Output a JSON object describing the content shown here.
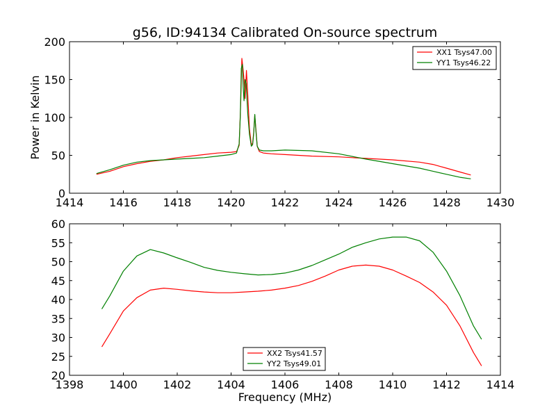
{
  "chart_data": [
    {
      "type": "line",
      "title": "g56, ID:94134 Calibrated On-source spectrum",
      "xlabel": "",
      "ylabel": "Power in Kelvin",
      "xlim": [
        1414,
        1430
      ],
      "ylim": [
        0,
        200
      ],
      "xticks": [
        1414,
        1416,
        1418,
        1420,
        1422,
        1424,
        1426,
        1428,
        1430
      ],
      "yticks": [
        0,
        50,
        100,
        150,
        200
      ],
      "legend_position": "top-right",
      "series": [
        {
          "name": "XX1 Tsys47.00",
          "color": "#ff0000",
          "points": [
            [
              1415.0,
              25
            ],
            [
              1415.5,
              29
            ],
            [
              1416.0,
              35
            ],
            [
              1416.5,
              39
            ],
            [
              1417.0,
              42
            ],
            [
              1417.5,
              44
            ],
            [
              1418.0,
              47
            ],
            [
              1418.5,
              49
            ],
            [
              1419.0,
              51
            ],
            [
              1419.5,
              53
            ],
            [
              1420.0,
              54
            ],
            [
              1420.2,
              55
            ],
            [
              1420.3,
              63
            ],
            [
              1420.36,
              120
            ],
            [
              1420.4,
              178
            ],
            [
              1420.44,
              165
            ],
            [
              1420.48,
              150
            ],
            [
              1420.52,
              125
            ],
            [
              1420.57,
              162
            ],
            [
              1420.62,
              130
            ],
            [
              1420.68,
              85
            ],
            [
              1420.75,
              64
            ],
            [
              1420.8,
              66
            ],
            [
              1420.84,
              80
            ],
            [
              1420.88,
              103
            ],
            [
              1420.92,
              85
            ],
            [
              1420.97,
              62
            ],
            [
              1421.05,
              55
            ],
            [
              1421.2,
              53
            ],
            [
              1421.5,
              52
            ],
            [
              1422.0,
              51
            ],
            [
              1423.0,
              49
            ],
            [
              1424.0,
              48
            ],
            [
              1425.0,
              46
            ],
            [
              1426.0,
              44
            ],
            [
              1427.0,
              41
            ],
            [
              1427.5,
              38
            ],
            [
              1428.0,
              33
            ],
            [
              1428.5,
              28
            ],
            [
              1428.9,
              24
            ]
          ]
        },
        {
          "name": "YY1 Tsys46.22",
          "color": "#008000",
          "points": [
            [
              1415.0,
              26
            ],
            [
              1415.5,
              31
            ],
            [
              1416.0,
              37
            ],
            [
              1416.5,
              41
            ],
            [
              1417.0,
              43
            ],
            [
              1417.5,
              44
            ],
            [
              1418.0,
              45
            ],
            [
              1418.5,
              46
            ],
            [
              1419.0,
              47
            ],
            [
              1419.5,
              49
            ],
            [
              1420.0,
              51
            ],
            [
              1420.2,
              53
            ],
            [
              1420.3,
              65
            ],
            [
              1420.34,
              100
            ],
            [
              1420.38,
              165
            ],
            [
              1420.42,
              170
            ],
            [
              1420.45,
              140
            ],
            [
              1420.48,
              122
            ],
            [
              1420.52,
              150
            ],
            [
              1420.56,
              145
            ],
            [
              1420.62,
              105
            ],
            [
              1420.68,
              78
            ],
            [
              1420.75,
              62
            ],
            [
              1420.8,
              64
            ],
            [
              1420.84,
              78
            ],
            [
              1420.88,
              104
            ],
            [
              1420.92,
              82
            ],
            [
              1420.97,
              62
            ],
            [
              1421.05,
              57
            ],
            [
              1421.2,
              56
            ],
            [
              1421.5,
              56
            ],
            [
              1422.0,
              57
            ],
            [
              1423.0,
              56
            ],
            [
              1424.0,
              52
            ],
            [
              1425.0,
              45
            ],
            [
              1426.0,
              39
            ],
            [
              1427.0,
              33
            ],
            [
              1427.5,
              29
            ],
            [
              1428.0,
              25
            ],
            [
              1428.5,
              21
            ],
            [
              1428.9,
              19
            ]
          ]
        }
      ]
    },
    {
      "type": "line",
      "title": "",
      "xlabel": "Frequency (MHz)",
      "ylabel": "",
      "xlim": [
        1398,
        1414
      ],
      "ylim": [
        20,
        60
      ],
      "xticks": [
        1398,
        1400,
        1402,
        1404,
        1406,
        1408,
        1410,
        1412,
        1414
      ],
      "yticks": [
        20,
        25,
        30,
        35,
        40,
        45,
        50,
        55,
        60
      ],
      "legend_position": "bottom-center",
      "series": [
        {
          "name": "XX2 Tsys41.57",
          "color": "#ff0000",
          "points": [
            [
              1399.2,
              27.5
            ],
            [
              1399.5,
              31
            ],
            [
              1400.0,
              37
            ],
            [
              1400.5,
              40.5
            ],
            [
              1401.0,
              42.5
            ],
            [
              1401.5,
              43
            ],
            [
              1402.0,
              42.7
            ],
            [
              1402.5,
              42.3
            ],
            [
              1403.0,
              42
            ],
            [
              1403.5,
              41.8
            ],
            [
              1404.0,
              41.8
            ],
            [
              1404.5,
              42
            ],
            [
              1405.0,
              42.2
            ],
            [
              1405.5,
              42.5
            ],
            [
              1406.0,
              43
            ],
            [
              1406.5,
              43.7
            ],
            [
              1407.0,
              44.8
            ],
            [
              1407.5,
              46.2
            ],
            [
              1408.0,
              47.8
            ],
            [
              1408.5,
              48.8
            ],
            [
              1409.0,
              49.1
            ],
            [
              1409.5,
              48.8
            ],
            [
              1410.0,
              47.8
            ],
            [
              1410.5,
              46.2
            ],
            [
              1411.0,
              44.5
            ],
            [
              1411.5,
              42
            ],
            [
              1412.0,
              38.5
            ],
            [
              1412.5,
              33
            ],
            [
              1413.0,
              26
            ],
            [
              1413.3,
              22.5
            ]
          ]
        },
        {
          "name": "YY2 Tsys49.01",
          "color": "#008000",
          "points": [
            [
              1399.2,
              37.5
            ],
            [
              1399.5,
              41
            ],
            [
              1400.0,
              47.5
            ],
            [
              1400.5,
              51.5
            ],
            [
              1401.0,
              53.2
            ],
            [
              1401.5,
              52.3
            ],
            [
              1402.0,
              51
            ],
            [
              1402.5,
              49.8
            ],
            [
              1403.0,
              48.5
            ],
            [
              1403.5,
              47.7
            ],
            [
              1404.0,
              47.2
            ],
            [
              1404.5,
              46.8
            ],
            [
              1405.0,
              46.5
            ],
            [
              1405.5,
              46.6
            ],
            [
              1406.0,
              47
            ],
            [
              1406.5,
              47.8
            ],
            [
              1407.0,
              49
            ],
            [
              1407.5,
              50.5
            ],
            [
              1408.0,
              52
            ],
            [
              1408.5,
              53.8
            ],
            [
              1409.0,
              55
            ],
            [
              1409.5,
              56
            ],
            [
              1410.0,
              56.5
            ],
            [
              1410.5,
              56.5
            ],
            [
              1411.0,
              55.5
            ],
            [
              1411.5,
              52.5
            ],
            [
              1412.0,
              47.5
            ],
            [
              1412.5,
              41
            ],
            [
              1413.0,
              33
            ],
            [
              1413.3,
              29.5
            ]
          ]
        }
      ]
    }
  ]
}
